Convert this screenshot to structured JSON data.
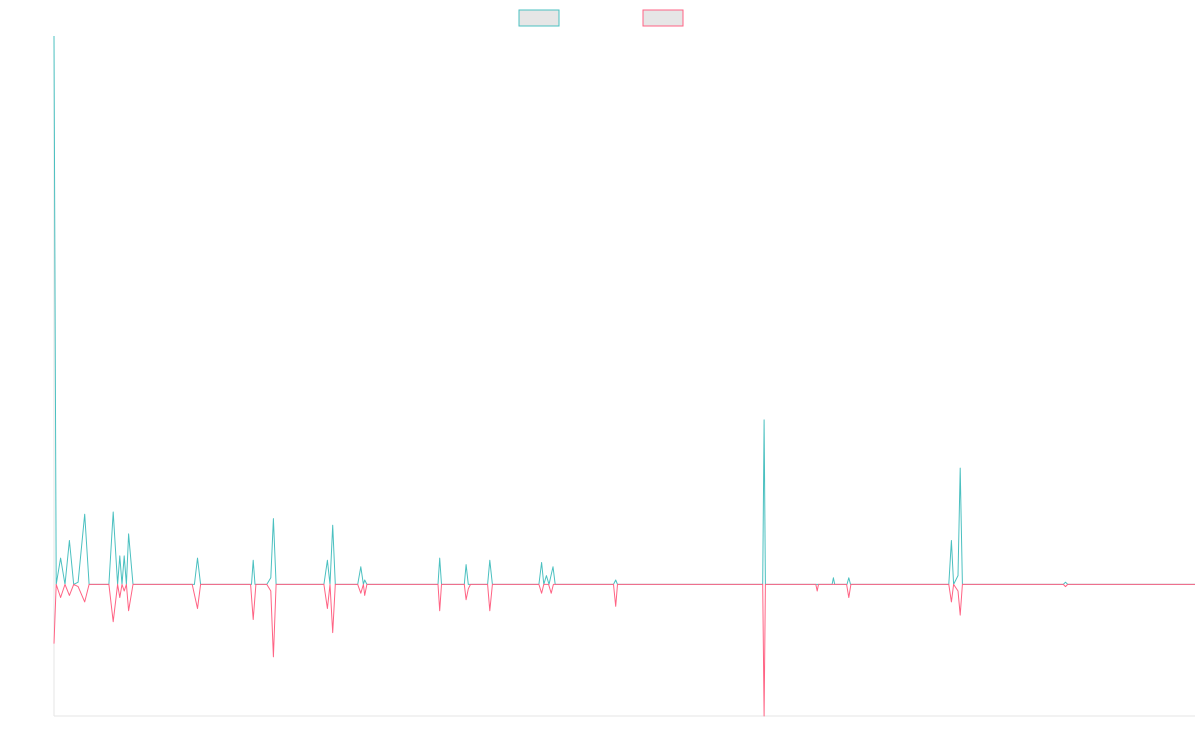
{
  "chart_data": {
    "type": "line",
    "title": "",
    "xlabel": "",
    "ylabel": "",
    "grid": false,
    "legend_position": "top-center",
    "x_range": [
      0,
      260
    ],
    "ylim": [
      -6,
      25
    ],
    "series": [
      {
        "color": "#4bc0c0",
        "fill": "#e6e6e6",
        "points": [
          [
            0,
            25
          ],
          [
            0.5,
            0
          ],
          [
            1.5,
            1.2
          ],
          [
            2.5,
            0
          ],
          [
            3.5,
            2
          ],
          [
            4.5,
            0
          ],
          [
            5.5,
            0.1
          ],
          [
            7,
            3.2
          ],
          [
            8,
            0
          ],
          [
            12.5,
            0
          ],
          [
            13.5,
            3.3
          ],
          [
            14.5,
            0
          ],
          [
            15,
            1.3
          ],
          [
            15.5,
            0
          ],
          [
            16,
            1.3
          ],
          [
            16.5,
            0
          ],
          [
            17,
            2.3
          ],
          [
            18,
            0
          ],
          [
            32,
            0
          ],
          [
            32.7,
            1.2
          ],
          [
            33.4,
            0
          ],
          [
            45,
            0
          ],
          [
            45.4,
            1.1
          ],
          [
            45.8,
            0
          ],
          [
            48.5,
            0
          ],
          [
            49.4,
            0.3
          ],
          [
            50,
            3
          ],
          [
            50.6,
            0
          ],
          [
            61.5,
            0
          ],
          [
            62.3,
            1.1
          ],
          [
            62.9,
            0
          ],
          [
            63.5,
            2.7
          ],
          [
            64.1,
            0
          ],
          [
            69.2,
            0
          ],
          [
            69.9,
            0.8
          ],
          [
            70.5,
            0
          ],
          [
            70.8,
            0.2
          ],
          [
            71.3,
            0
          ],
          [
            87.5,
            0
          ],
          [
            87.9,
            1.2
          ],
          [
            88.3,
            0
          ],
          [
            93.5,
            0
          ],
          [
            93.9,
            0.9
          ],
          [
            94.4,
            0
          ],
          [
            98.8,
            0
          ],
          [
            99.3,
            1.1
          ],
          [
            99.9,
            0
          ],
          [
            110.5,
            0
          ],
          [
            111.1,
            1
          ],
          [
            111.6,
            0
          ],
          [
            112.2,
            0.4
          ],
          [
            112.8,
            0
          ],
          [
            113.7,
            0.8
          ],
          [
            114.2,
            0
          ],
          [
            127.5,
            0
          ],
          [
            128,
            0.2
          ],
          [
            128.4,
            0
          ],
          [
            161.5,
            0
          ],
          [
            161.8,
            7.5
          ],
          [
            162.1,
            0
          ],
          [
            177.3,
            0
          ],
          [
            177.6,
            0.3
          ],
          [
            177.9,
            0
          ],
          [
            180.7,
            0
          ],
          [
            181.1,
            0.3
          ],
          [
            181.5,
            0
          ],
          [
            203.9,
            0
          ],
          [
            204.5,
            2
          ],
          [
            205,
            0
          ],
          [
            206,
            0.4
          ],
          [
            206.5,
            5.3
          ],
          [
            207,
            0
          ],
          [
            230,
            0
          ],
          [
            230.5,
            0.1
          ],
          [
            231,
            0
          ],
          [
            260,
            0
          ]
        ]
      },
      {
        "color": "#ff6384",
        "fill": "#e6e6e6",
        "points": [
          [
            0,
            -2.7
          ],
          [
            0.5,
            0
          ],
          [
            1.5,
            -0.6
          ],
          [
            2.5,
            0
          ],
          [
            3.5,
            -0.5
          ],
          [
            4.5,
            0
          ],
          [
            5.5,
            -0.1
          ],
          [
            7,
            -0.8
          ],
          [
            8,
            0
          ],
          [
            12.5,
            0
          ],
          [
            13.5,
            -1.7
          ],
          [
            14.5,
            0
          ],
          [
            15,
            -0.6
          ],
          [
            15.5,
            0
          ],
          [
            16,
            -0.3
          ],
          [
            16.5,
            0
          ],
          [
            17,
            -1.2
          ],
          [
            18,
            0
          ],
          [
            31.5,
            0
          ],
          [
            32.7,
            -1.1
          ],
          [
            33.4,
            0
          ],
          [
            44.8,
            0
          ],
          [
            45.4,
            -1.6
          ],
          [
            46,
            0
          ],
          [
            48.5,
            0
          ],
          [
            49.4,
            -0.3
          ],
          [
            50,
            -3.3
          ],
          [
            50.6,
            0
          ],
          [
            61.5,
            0
          ],
          [
            62.3,
            -1.1
          ],
          [
            62.9,
            0
          ],
          [
            63.5,
            -2.2
          ],
          [
            64.1,
            0
          ],
          [
            69.2,
            0
          ],
          [
            69.9,
            -0.4
          ],
          [
            70.5,
            0
          ],
          [
            70.8,
            -0.5
          ],
          [
            71.3,
            0
          ],
          [
            87.5,
            0
          ],
          [
            87.9,
            -1.2
          ],
          [
            88.3,
            0
          ],
          [
            93.5,
            0
          ],
          [
            93.9,
            -0.7
          ],
          [
            94.4,
            -0.2
          ],
          [
            94.9,
            0
          ],
          [
            98.8,
            0
          ],
          [
            99.3,
            -1.2
          ],
          [
            99.9,
            0
          ],
          [
            110.5,
            0
          ],
          [
            111.1,
            -0.4
          ],
          [
            111.6,
            0
          ],
          [
            112.7,
            0
          ],
          [
            113.3,
            -0.4
          ],
          [
            113.8,
            0
          ],
          [
            127.5,
            0
          ],
          [
            128,
            -1
          ],
          [
            128.4,
            0
          ],
          [
            161.5,
            0
          ],
          [
            161.8,
            -6
          ],
          [
            162.1,
            0
          ],
          [
            173.6,
            0
          ],
          [
            173.9,
            -0.3
          ],
          [
            174.2,
            0
          ],
          [
            180.6,
            0
          ],
          [
            181.1,
            -0.6
          ],
          [
            181.6,
            0
          ],
          [
            203.9,
            0
          ],
          [
            204.5,
            -0.8
          ],
          [
            205,
            0
          ],
          [
            206,
            -0.3
          ],
          [
            206.5,
            -1.4
          ],
          [
            207,
            0
          ],
          [
            230,
            0
          ],
          [
            230.5,
            -0.1
          ],
          [
            231,
            0
          ],
          [
            260,
            0
          ]
        ]
      }
    ]
  }
}
